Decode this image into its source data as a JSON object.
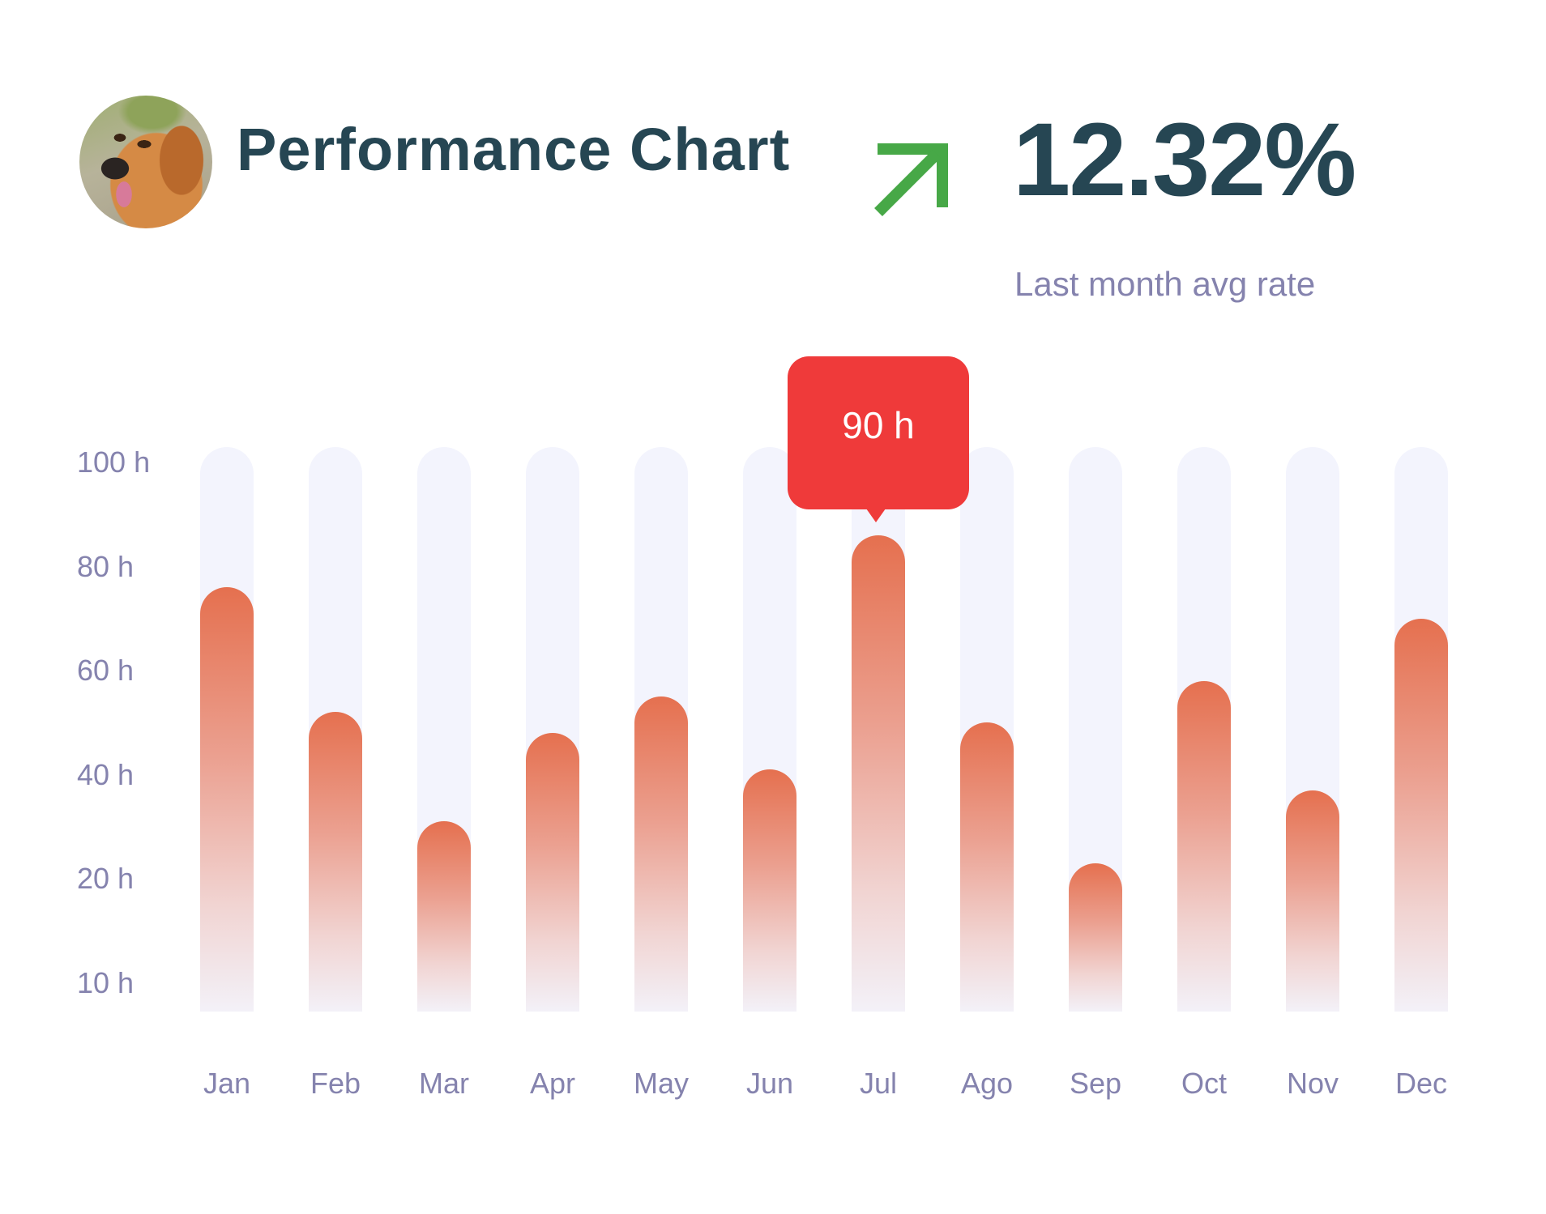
{
  "header": {
    "avatar_alt": "dog-avatar",
    "title": "Performance Chart"
  },
  "summary": {
    "trend_icon": "arrow-up-right-icon",
    "trend_color": "#4CAF50",
    "rate": "12.32%",
    "caption": "Last month avg rate"
  },
  "tooltip": {
    "month": "Jul",
    "label": "90 h",
    "color": "#EF3A3A"
  },
  "colors": {
    "text_dark": "#264653",
    "text_muted": "#8583AE",
    "track": "#F3F4FD",
    "bar_top": "#E5704F"
  },
  "y_axis": {
    "labels": [
      "100 h",
      "80 h",
      "60 h",
      "40 h",
      "20 h",
      "10 h"
    ]
  },
  "x_axis": {
    "labels": [
      "Jan",
      "Feb",
      "Mar",
      "Apr",
      "May",
      "Jun",
      "Jul",
      "Ago",
      "Sep",
      "Oct",
      "Nov",
      "Dec"
    ]
  },
  "chart_data": {
    "type": "bar",
    "title": "Performance Chart",
    "xlabel": "",
    "ylabel": "hours",
    "categories": [
      "Jan",
      "Feb",
      "Mar",
      "Apr",
      "May",
      "Jun",
      "Jul",
      "Ago",
      "Sep",
      "Oct",
      "Nov",
      "Dec"
    ],
    "values": [
      76,
      52,
      31,
      48,
      55,
      41,
      90,
      50,
      23,
      58,
      37,
      70
    ],
    "ytick_labels": [
      "100 h",
      "80 h",
      "60 h",
      "40 h",
      "20 h",
      "10 h"
    ],
    "ylim": [
      0,
      100
    ],
    "grid": false,
    "legend": null,
    "annotations": [
      {
        "category": "Jul",
        "text": "90 h"
      }
    ],
    "headline": {
      "value": "12.32%",
      "caption": "Last month avg rate",
      "trend": "up"
    }
  }
}
